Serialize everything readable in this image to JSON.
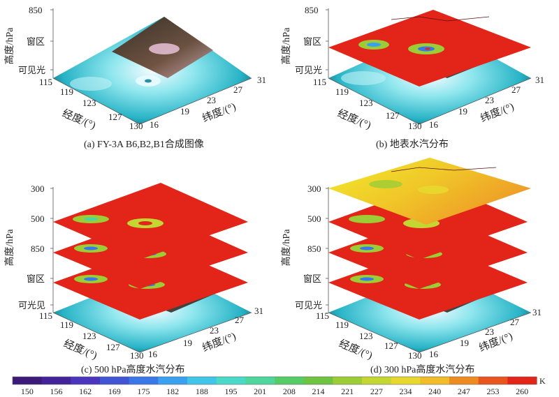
{
  "panels": {
    "a": {
      "caption": "(a)  FY-3A B6,B2,B1合成图像",
      "vertical_ticks": [
        "850",
        "窗区",
        "可见光"
      ],
      "vertical_label": "高度/hPa"
    },
    "b": {
      "caption": "(b)  地表水汽分布",
      "vertical_ticks": [
        "850",
        "窗区",
        "可见光"
      ],
      "vertical_label": "高度/hPa"
    },
    "c": {
      "caption": "(c)  500 hPa高度水汽分布",
      "vertical_ticks": [
        "300",
        "500",
        "850",
        "窗区",
        "可光见"
      ],
      "vertical_label": "高度/hPa"
    },
    "d": {
      "caption": "(d)  300 hPa高度水汽分布",
      "vertical_ticks": [
        "300",
        "500",
        "850",
        "窗区",
        "可见光"
      ],
      "vertical_label": "高度/hPa"
    }
  },
  "axes": {
    "longitude_ticks": [
      "115",
      "119",
      "123",
      "127",
      "130"
    ],
    "longitude_label": "经度/(°)",
    "latitude_ticks": [
      "16",
      "19",
      "23",
      "27",
      "31"
    ],
    "latitude_label": "纬度/(°)"
  },
  "colorbar": {
    "unit": "K",
    "ticks": [
      "150",
      "156",
      "162",
      "169",
      "175",
      "182",
      "188",
      "195",
      "201",
      "208",
      "214",
      "221",
      "227",
      "234",
      "240",
      "247",
      "253",
      "260"
    ],
    "colors": [
      "#3b1a7a",
      "#44229a",
      "#4a35bc",
      "#4254d6",
      "#3a78e8",
      "#3aa0f0",
      "#40c4e8",
      "#4ad8c8",
      "#4ed69c",
      "#55cc66",
      "#6ec440",
      "#9ccd36",
      "#c4d632",
      "#e8d82e",
      "#f2bb28",
      "#ee8c22",
      "#e8561e",
      "#e32418"
    ]
  }
}
